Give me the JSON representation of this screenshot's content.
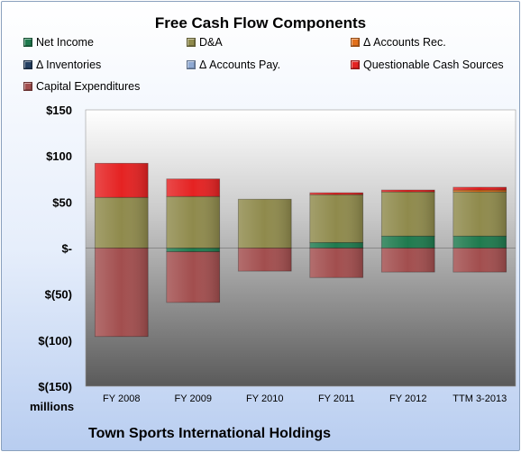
{
  "chart_data": {
    "type": "bar",
    "stacked": true,
    "title": "Free Cash Flow Components",
    "ylabel": "millions",
    "ylim": [
      -150,
      150
    ],
    "yticks": [
      150,
      100,
      50,
      0,
      -50,
      -100,
      -150
    ],
    "ytick_labels": [
      "$150",
      "$100",
      "$50",
      "$-",
      "$(50)",
      "$(100)",
      "$(150)"
    ],
    "grid": false,
    "legend_position": "top",
    "categories": [
      "FY 2008",
      "FY 2009",
      "FY 2010",
      "FY 2011",
      "FY 2012",
      "TTM 3-2013"
    ],
    "series": [
      {
        "name": "Net Income",
        "color": "#1f7a4e",
        "values": [
          0,
          -4,
          0,
          6,
          13,
          13
        ]
      },
      {
        "name": "D&A",
        "color": "#8f8a4c",
        "values": [
          55,
          56,
          53,
          52,
          48,
          48
        ]
      },
      {
        "name": "Δ Accounts Rec.",
        "color": "#e2701b",
        "values": [
          0,
          0,
          0,
          0,
          0,
          2
        ]
      },
      {
        "name": "Δ Inventories",
        "color": "#244062",
        "values": [
          0,
          0,
          0,
          0,
          0,
          0
        ]
      },
      {
        "name": "Δ Accounts Pay.",
        "color": "#8ea9d3",
        "values": [
          0,
          0,
          0,
          0,
          0,
          0
        ]
      },
      {
        "name": "Questionable Cash Sources",
        "color": "#e52222",
        "values": [
          37,
          19,
          0,
          2,
          2,
          3
        ]
      },
      {
        "name": "Capital Expenditures",
        "color": "#a24e4e",
        "values": [
          -96,
          -55,
          -25,
          -32,
          -26,
          -26
        ]
      }
    ],
    "footnote": "Town Sports International Holdings"
  },
  "page": {
    "title": "Free Cash Flow Components",
    "units": "millions",
    "company": "Town Sports International Holdings"
  }
}
